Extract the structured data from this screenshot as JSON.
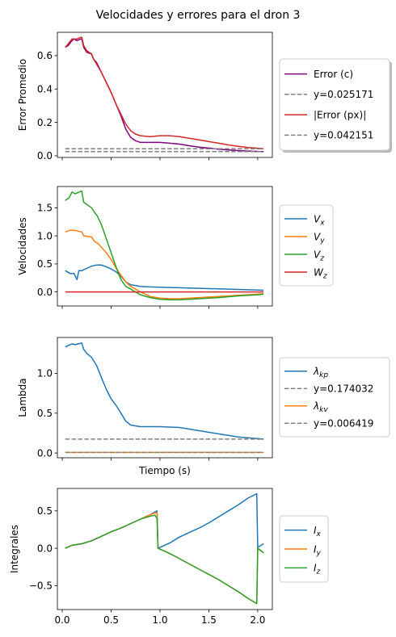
{
  "title": "Velocidades y errores para el dron 3",
  "colors": {
    "blue": "#1f77b4",
    "orange": "#ff7f0e",
    "green": "#2ca02c",
    "red": "#d62728",
    "purple": "#800080",
    "gray": "#808080"
  },
  "chart_data": [
    {
      "type": "line",
      "ylabel": "Error Promedio",
      "xlabel": "",
      "xlim": [
        -0.05,
        2.15
      ],
      "ylim": [
        -0.01,
        0.74
      ],
      "xticks": [
        0.0,
        0.5,
        1.0,
        1.5,
        2.0
      ],
      "show_xticklabels": false,
      "yticks": [
        0.0,
        0.2,
        0.4,
        0.6
      ],
      "ytick_labels": [
        "0.0",
        "0.2",
        "0.4",
        "0.6"
      ],
      "legend": "outside-right",
      "legend_shadow": true,
      "series": [
        {
          "name": "Error (c)",
          "color": "purple",
          "style": "solid",
          "x": [
            0.03,
            0.06,
            0.1,
            0.12,
            0.15,
            0.19,
            0.2,
            0.22,
            0.25,
            0.3,
            0.32,
            0.35,
            0.4,
            0.45,
            0.5,
            0.55,
            0.6,
            0.65,
            0.7,
            0.75,
            0.8,
            0.85,
            0.9,
            0.95,
            1.0,
            1.1,
            1.2,
            1.3,
            1.4,
            1.5,
            1.6,
            1.7,
            1.8,
            1.9,
            2.0,
            2.06
          ],
          "y": [
            0.65,
            0.66,
            0.69,
            0.7,
            0.69,
            0.7,
            0.7,
            0.65,
            0.62,
            0.61,
            0.58,
            0.56,
            0.5,
            0.44,
            0.38,
            0.31,
            0.24,
            0.16,
            0.11,
            0.09,
            0.08,
            0.08,
            0.08,
            0.08,
            0.08,
            0.075,
            0.07,
            0.06,
            0.052,
            0.046,
            0.04,
            0.035,
            0.031,
            0.028,
            0.026,
            0.025
          ]
        },
        {
          "name": "y=0.025171",
          "color": "gray",
          "style": "dashed",
          "x": [
            0.03,
            2.06
          ],
          "y": [
            0.025171,
            0.025171
          ]
        },
        {
          "name": "|Error (px)|",
          "color": "red",
          "style": "solid",
          "x": [
            0.03,
            0.06,
            0.1,
            0.12,
            0.15,
            0.19,
            0.2,
            0.22,
            0.25,
            0.3,
            0.32,
            0.35,
            0.4,
            0.45,
            0.5,
            0.55,
            0.6,
            0.65,
            0.7,
            0.75,
            0.8,
            0.9,
            1.0,
            1.1,
            1.2,
            1.3,
            1.4,
            1.5,
            1.6,
            1.7,
            1.8,
            1.9,
            2.0,
            2.06
          ],
          "y": [
            0.65,
            0.67,
            0.7,
            0.7,
            0.7,
            0.71,
            0.71,
            0.66,
            0.63,
            0.61,
            0.58,
            0.55,
            0.5,
            0.44,
            0.38,
            0.31,
            0.25,
            0.19,
            0.15,
            0.13,
            0.12,
            0.115,
            0.12,
            0.12,
            0.115,
            0.105,
            0.095,
            0.085,
            0.075,
            0.065,
            0.057,
            0.05,
            0.045,
            0.042
          ]
        },
        {
          "name": "y=0.042151",
          "color": "gray",
          "style": "dashed",
          "x": [
            0.03,
            2.06
          ],
          "y": [
            0.042151,
            0.042151
          ]
        }
      ]
    },
    {
      "type": "line",
      "ylabel": "Velocidades",
      "xlabel": "",
      "xlim": [
        -0.05,
        2.15
      ],
      "ylim": [
        -0.25,
        1.88
      ],
      "xticks": [
        0.0,
        0.5,
        1.0,
        1.5,
        2.0
      ],
      "show_xticklabels": false,
      "yticks": [
        0.0,
        0.5,
        1.0,
        1.5
      ],
      "ytick_labels": [
        "0.0",
        "0.5",
        "1.0",
        "1.5"
      ],
      "legend": "outside-right",
      "legend_shadow": false,
      "series": [
        {
          "name": "V_x",
          "sub": "x",
          "color": "blue",
          "style": "solid",
          "x": [
            0.03,
            0.08,
            0.12,
            0.15,
            0.17,
            0.2,
            0.25,
            0.3,
            0.35,
            0.4,
            0.45,
            0.5,
            0.55,
            0.6,
            0.65,
            0.7,
            0.8,
            0.9,
            1.0,
            1.2,
            1.4,
            1.6,
            1.8,
            2.0,
            2.06
          ],
          "y": [
            0.38,
            0.33,
            0.33,
            0.22,
            0.38,
            0.38,
            0.42,
            0.46,
            0.48,
            0.48,
            0.45,
            0.41,
            0.36,
            0.28,
            0.18,
            0.13,
            0.1,
            0.09,
            0.085,
            0.075,
            0.065,
            0.055,
            0.045,
            0.035,
            0.03
          ]
        },
        {
          "name": "V_y",
          "sub": "y",
          "color": "orange",
          "style": "solid",
          "x": [
            0.03,
            0.08,
            0.12,
            0.2,
            0.22,
            0.3,
            0.33,
            0.36,
            0.4,
            0.45,
            0.5,
            0.55,
            0.6,
            0.65,
            0.7,
            0.8,
            0.9,
            1.0,
            1.1,
            1.2,
            1.4,
            1.6,
            1.8,
            2.0,
            2.06
          ],
          "y": [
            1.07,
            1.1,
            1.1,
            1.07,
            1.0,
            0.98,
            0.9,
            0.87,
            0.8,
            0.7,
            0.58,
            0.43,
            0.3,
            0.18,
            0.1,
            0.0,
            -0.08,
            -0.11,
            -0.12,
            -0.12,
            -0.1,
            -0.08,
            -0.06,
            -0.04,
            -0.03
          ]
        },
        {
          "name": "V_z",
          "sub": "z",
          "color": "green",
          "style": "solid",
          "x": [
            0.03,
            0.07,
            0.1,
            0.13,
            0.2,
            0.22,
            0.3,
            0.33,
            0.36,
            0.4,
            0.45,
            0.5,
            0.55,
            0.6,
            0.65,
            0.7,
            0.8,
            0.9,
            1.0,
            1.1,
            1.2,
            1.4,
            1.6,
            1.8,
            2.0,
            2.06
          ],
          "y": [
            1.63,
            1.68,
            1.78,
            1.75,
            1.8,
            1.6,
            1.5,
            1.42,
            1.35,
            1.2,
            0.95,
            0.7,
            0.45,
            0.22,
            0.1,
            0.05,
            -0.05,
            -0.1,
            -0.13,
            -0.14,
            -0.14,
            -0.12,
            -0.1,
            -0.07,
            -0.05,
            -0.04
          ]
        },
        {
          "name": "W_z",
          "sub": "z",
          "color": "red",
          "style": "solid",
          "x": [
            0.03,
            2.06
          ],
          "y": [
            0,
            0
          ]
        }
      ]
    },
    {
      "type": "line",
      "ylabel": "Lambda",
      "xlabel": "Tiempo (s)",
      "xlim": [
        -0.05,
        2.15
      ],
      "ylim": [
        -0.06,
        1.45
      ],
      "xticks": [
        0.0,
        0.5,
        1.0,
        1.5,
        2.0
      ],
      "show_xticklabels": false,
      "yticks": [
        0.0,
        0.5,
        1.0
      ],
      "ytick_labels": [
        "0.0",
        "0.5",
        "1.0"
      ],
      "legend": "outside-right",
      "legend_shadow": false,
      "series": [
        {
          "name": "λ_kp",
          "sub": "kp",
          "color": "blue",
          "style": "solid",
          "x": [
            0.03,
            0.06,
            0.1,
            0.13,
            0.2,
            0.22,
            0.25,
            0.3,
            0.35,
            0.4,
            0.45,
            0.5,
            0.55,
            0.6,
            0.65,
            0.7,
            0.8,
            0.9,
            1.0,
            1.2,
            1.4,
            1.6,
            1.8,
            2.0,
            2.06
          ],
          "y": [
            1.33,
            1.35,
            1.37,
            1.36,
            1.38,
            1.3,
            1.25,
            1.2,
            1.1,
            0.95,
            0.8,
            0.68,
            0.6,
            0.5,
            0.4,
            0.35,
            0.33,
            0.33,
            0.33,
            0.32,
            0.28,
            0.24,
            0.2,
            0.18,
            0.174
          ]
        },
        {
          "name": "y=0.174032",
          "color": "gray",
          "style": "dashed",
          "x": [
            0.03,
            2.06
          ],
          "y": [
            0.174032,
            0.174032
          ]
        },
        {
          "name": "λ_kv",
          "sub": "kv",
          "color": "orange",
          "style": "solid",
          "x": [
            0.03,
            2.06
          ],
          "y": [
            0.006419,
            0.006419
          ]
        },
        {
          "name": "y=0.006419",
          "color": "gray",
          "style": "dashed",
          "x": [
            0.03,
            2.06
          ],
          "y": [
            0.006419,
            0.006419
          ]
        }
      ]
    },
    {
      "type": "line",
      "ylabel": "Integrales",
      "xlabel": "",
      "xlim": [
        -0.05,
        2.15
      ],
      "ylim": [
        -0.82,
        0.8
      ],
      "xticks": [
        0.0,
        0.5,
        1.0,
        1.5,
        2.0
      ],
      "xtick_labels": [
        "0.0",
        "0.5",
        "1.0",
        "1.5",
        "2.0"
      ],
      "show_xticklabels": true,
      "yticks": [
        -0.5,
        0.0,
        0.5
      ],
      "ytick_labels": [
        "−0.5",
        "0.0",
        "0.5"
      ],
      "legend": "outside-right",
      "legend_shadow": false,
      "series": [
        {
          "name": "I_x",
          "sub": "x",
          "color": "blue",
          "style": "solid",
          "x": [
            0.03,
            0.1,
            0.2,
            0.3,
            0.4,
            0.5,
            0.6,
            0.7,
            0.8,
            0.9,
            0.97,
            0.98,
            1.1,
            1.2,
            1.3,
            1.4,
            1.5,
            1.6,
            1.7,
            1.8,
            1.9,
            1.99,
            2.0,
            2.06
          ],
          "y": [
            0.0,
            0.04,
            0.06,
            0.1,
            0.16,
            0.22,
            0.27,
            0.33,
            0.39,
            0.45,
            0.5,
            0.0,
            0.07,
            0.15,
            0.21,
            0.27,
            0.34,
            0.42,
            0.5,
            0.58,
            0.67,
            0.73,
            0.01,
            0.06
          ]
        },
        {
          "name": "I_y",
          "sub": "y",
          "color": "orange",
          "style": "solid",
          "x": [
            0.03,
            0.1,
            0.2,
            0.3,
            0.4,
            0.5,
            0.6,
            0.7,
            0.8,
            0.9,
            0.97,
            0.98,
            1.1,
            1.2,
            1.4,
            1.6,
            1.8,
            1.9,
            1.99,
            2.0,
            2.06
          ],
          "y": [
            0.0,
            0.04,
            0.06,
            0.1,
            0.16,
            0.22,
            0.27,
            0.33,
            0.39,
            0.45,
            0.48,
            0.0,
            -0.07,
            -0.14,
            -0.28,
            -0.42,
            -0.58,
            -0.67,
            -0.74,
            0.0,
            -0.06
          ]
        },
        {
          "name": "I_z",
          "sub": "z",
          "color": "green",
          "style": "solid",
          "x": [
            0.03,
            0.1,
            0.2,
            0.3,
            0.4,
            0.5,
            0.6,
            0.7,
            0.8,
            0.9,
            0.95,
            0.97,
            0.98,
            1.1,
            1.2,
            1.4,
            1.6,
            1.8,
            1.9,
            1.99,
            2.0,
            2.06
          ],
          "y": [
            0.0,
            0.04,
            0.06,
            0.1,
            0.16,
            0.22,
            0.27,
            0.33,
            0.39,
            0.43,
            0.44,
            0.4,
            0.0,
            -0.07,
            -0.14,
            -0.28,
            -0.42,
            -0.58,
            -0.67,
            -0.74,
            0.0,
            -0.06
          ]
        }
      ]
    }
  ]
}
